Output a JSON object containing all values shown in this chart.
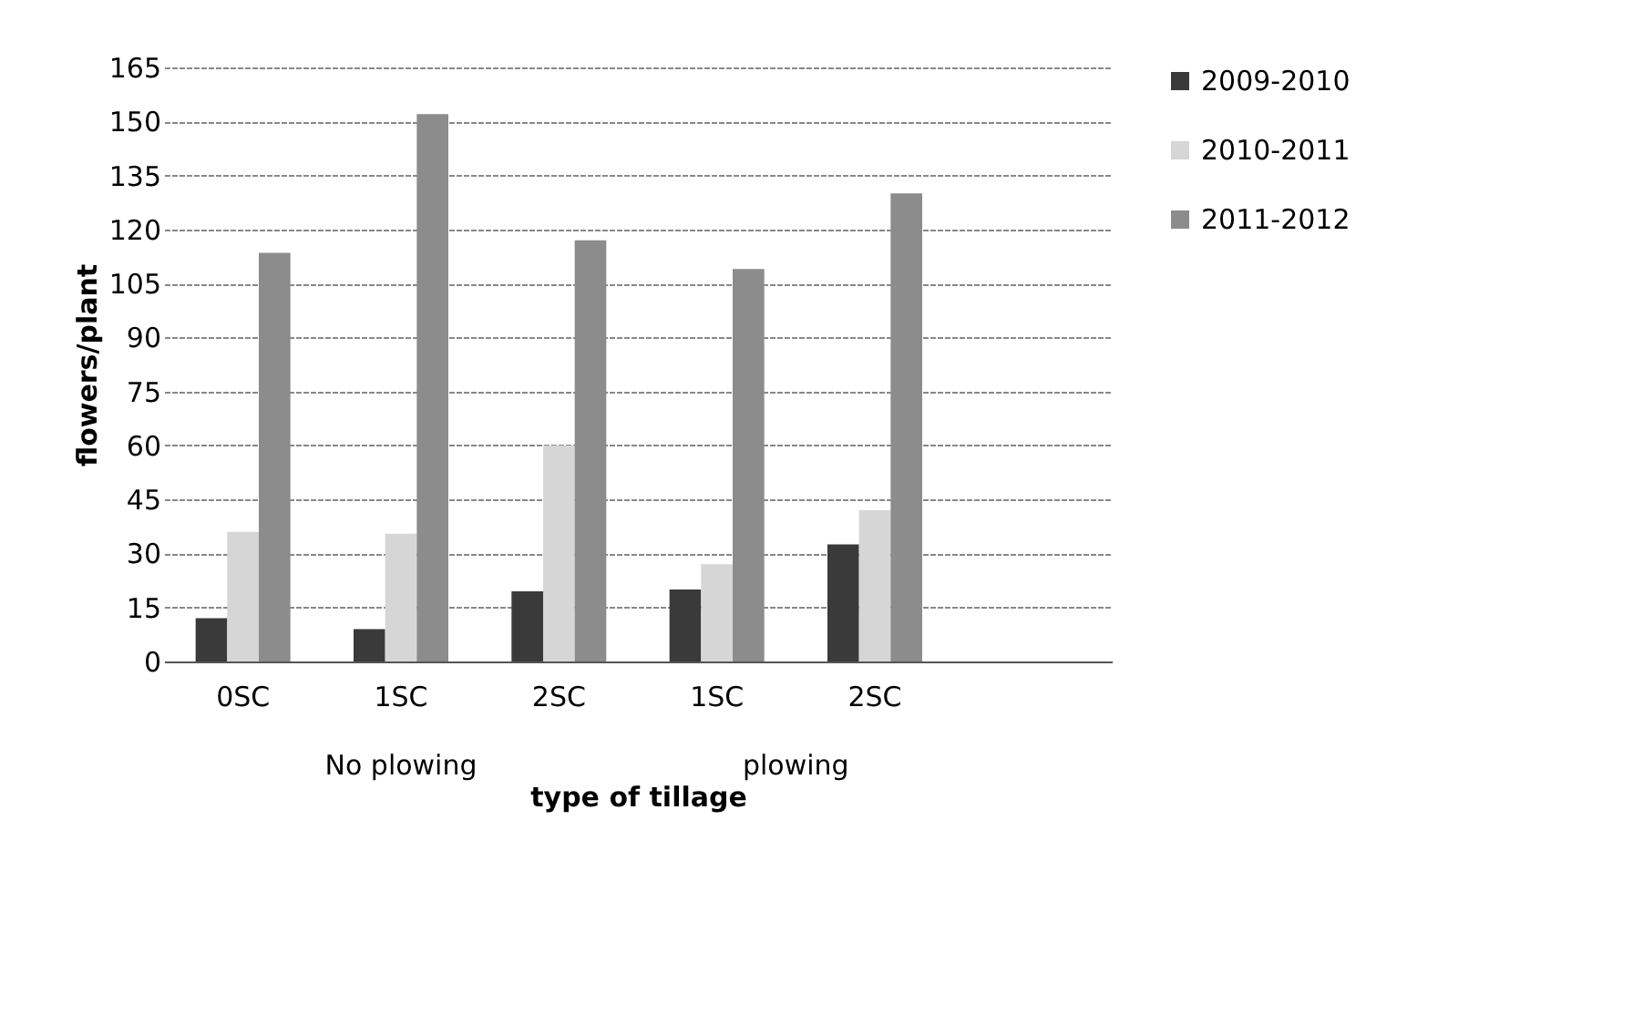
{
  "chart_data": {
    "type": "bar",
    "xlabel": "type of tillage",
    "ylabel": "flowers/plant",
    "categories": [
      "0SC",
      "1SC",
      "2SC",
      "1SC",
      "2SC",
      null
    ],
    "series": [
      {
        "name": "2009-2010",
        "color": "#3a3a3a",
        "values": [
          12,
          9,
          19.5,
          20,
          32.5,
          null
        ]
      },
      {
        "name": "2010-2011",
        "color": "#d6d6d6",
        "values": [
          36,
          35.5,
          60,
          27,
          42,
          null
        ]
      },
      {
        "name": "2011-2012",
        "color": "#8c8c8c",
        "values": [
          113.5,
          152,
          117,
          109,
          130,
          null
        ]
      }
    ],
    "ylim": [
      0,
      165
    ],
    "yticks": [
      0,
      15,
      30,
      45,
      60,
      75,
      90,
      105,
      120,
      135,
      150,
      165
    ],
    "grid": "y",
    "legend": "right",
    "annotations": [
      "No plowing",
      "plowing"
    ]
  }
}
